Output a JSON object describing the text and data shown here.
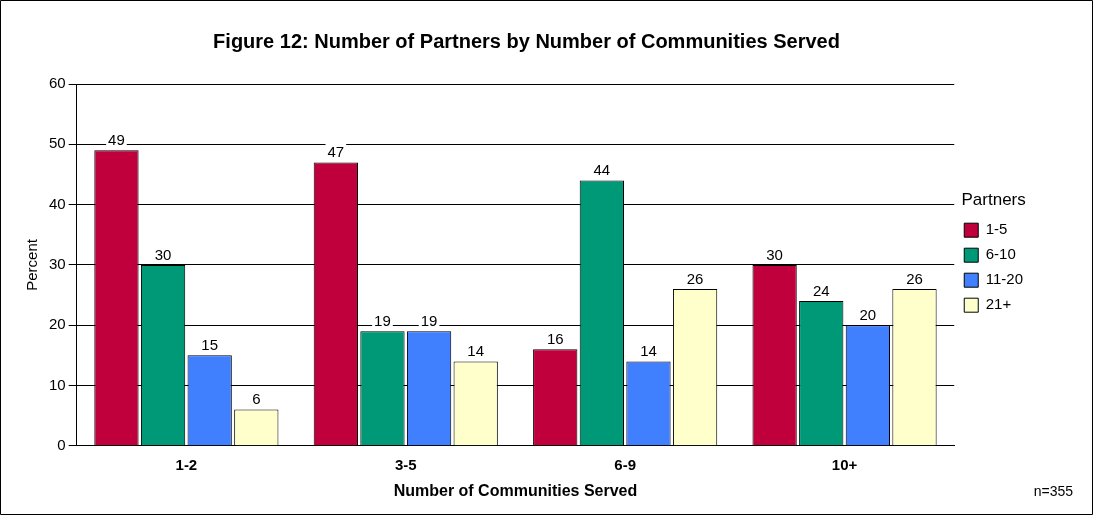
{
  "chart_data": {
    "type": "bar",
    "title": "Figure 12: Number of Partners by Number of Communities Served",
    "xlabel": "Number of Communities Served",
    "ylabel": "Percent",
    "legend_title": "Partners",
    "categories": [
      "1-2",
      "3-5",
      "6-9",
      "10+"
    ],
    "series": [
      {
        "name": "1-5",
        "color": "#c0003c",
        "values": [
          49,
          47,
          16,
          30
        ]
      },
      {
        "name": "6-10",
        "color": "#009977",
        "values": [
          30,
          19,
          44,
          24
        ]
      },
      {
        "name": "11-20",
        "color": "#4080ff",
        "values": [
          15,
          19,
          14,
          20
        ]
      },
      {
        "name": "21+",
        "color": "#ffffcc",
        "values": [
          6,
          14,
          26,
          26
        ]
      }
    ],
    "ylim": [
      0,
      60
    ],
    "yticks": [
      0,
      10,
      20,
      30,
      40,
      50,
      60
    ],
    "grid": "y",
    "legend": "right",
    "data_labels": true,
    "annotations": [
      "n=355"
    ]
  }
}
